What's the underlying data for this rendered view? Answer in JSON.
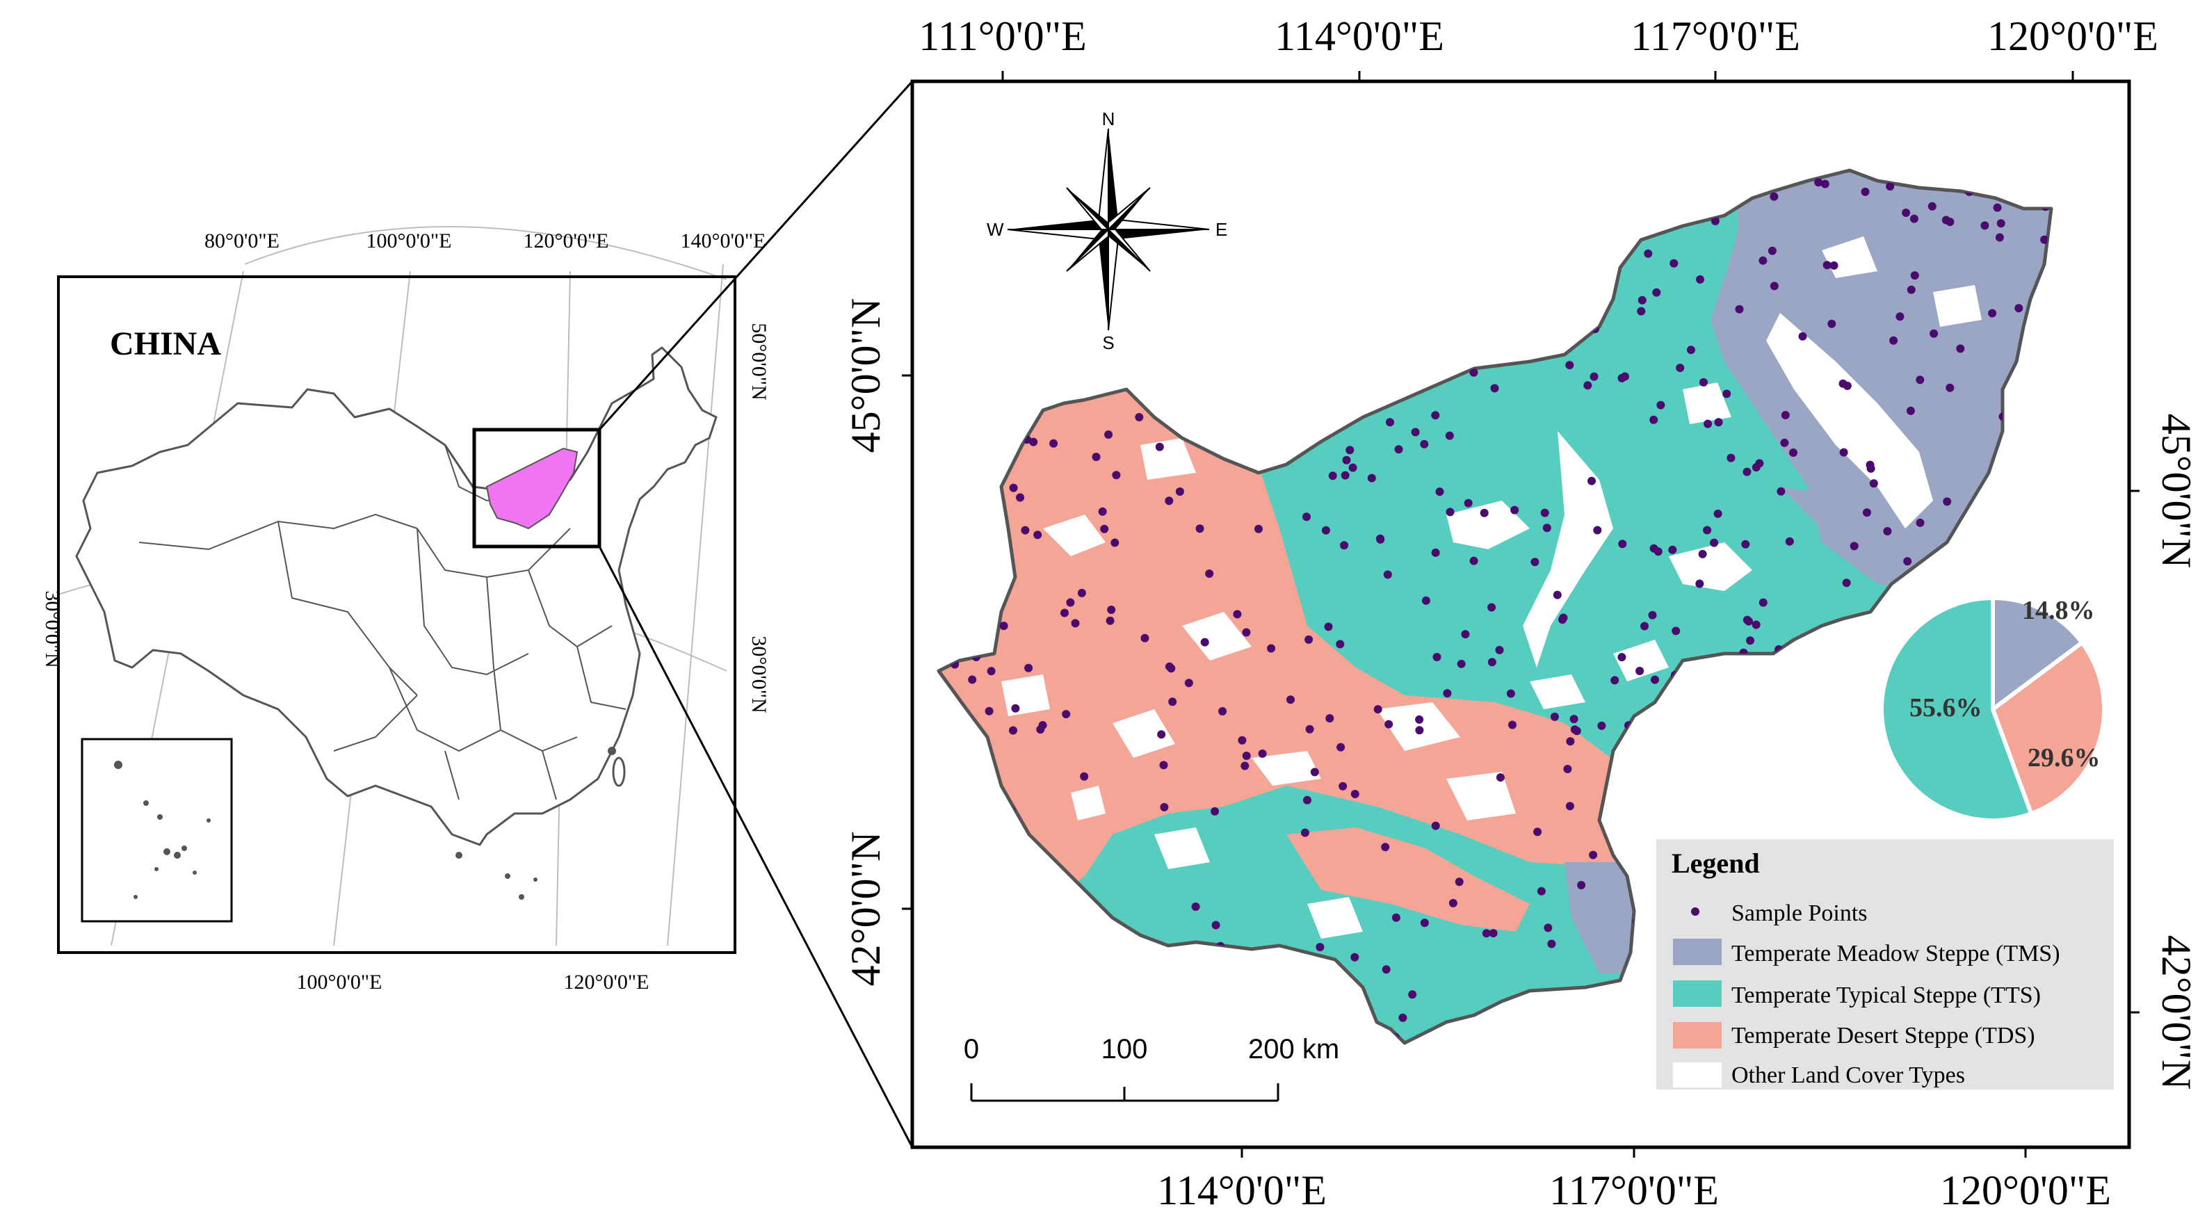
{
  "overview": {
    "country_label": "CHINA",
    "top_lon_labels": [
      "80°0'0\"E",
      "100°0'0\"E",
      "120°0'0\"E",
      "140°0'0\"E"
    ],
    "bottom_lon_labels": [
      "100°0'0\"E",
      "120°0'0\"E"
    ],
    "left_lat_labels": [
      "30°0'0\"N"
    ],
    "right_lat_labels": [
      "50°0'0\"N",
      "30°0'0\"N"
    ],
    "highlight_color": "#f075f0"
  },
  "main_map": {
    "top_lon_labels": [
      "111°0'0\"E",
      "114°0'0\"E",
      "117°0'0\"E",
      "120°0'0\"E"
    ],
    "bottom_lon_labels": [
      "114°0'0\"E",
      "117°0'0\"E",
      "120°0'0\"E"
    ],
    "left_lat_labels": [
      "45°0'0\"N",
      "42°0'0\"N"
    ],
    "right_lat_labels": [
      "45°0'0\"N",
      "42°0'0\"N"
    ],
    "compass": {
      "north": "N",
      "south": "S",
      "east": "E",
      "west": "W"
    },
    "scale_bar": {
      "ticks": [
        "0",
        "100",
        "200 km"
      ]
    }
  },
  "legend": {
    "title": "Legend",
    "items": [
      {
        "label": "Sample Points",
        "kind": "point",
        "color": "#4b0a6e"
      },
      {
        "label": "Temperate Meadow Steppe (TMS)",
        "kind": "fill",
        "color": "#9aa6c4"
      },
      {
        "label": "Temperate Typical Steppe (TTS)",
        "kind": "fill",
        "color": "#57cdbf"
      },
      {
        "label": "Temperate Desert Steppe (TDS)",
        "kind": "fill",
        "color": "#f5a596"
      },
      {
        "label": "Other Land Cover Types",
        "kind": "fill",
        "color": "#ffffff"
      }
    ]
  },
  "chart_data": {
    "type": "pie",
    "slices": [
      {
        "label": "14.8%",
        "value": 14.8,
        "color": "#9aa6c4"
      },
      {
        "label": "29.6%",
        "value": 29.6,
        "color": "#f5a596"
      },
      {
        "label": "55.6%",
        "value": 55.6,
        "color": "#57cdbf"
      }
    ]
  }
}
